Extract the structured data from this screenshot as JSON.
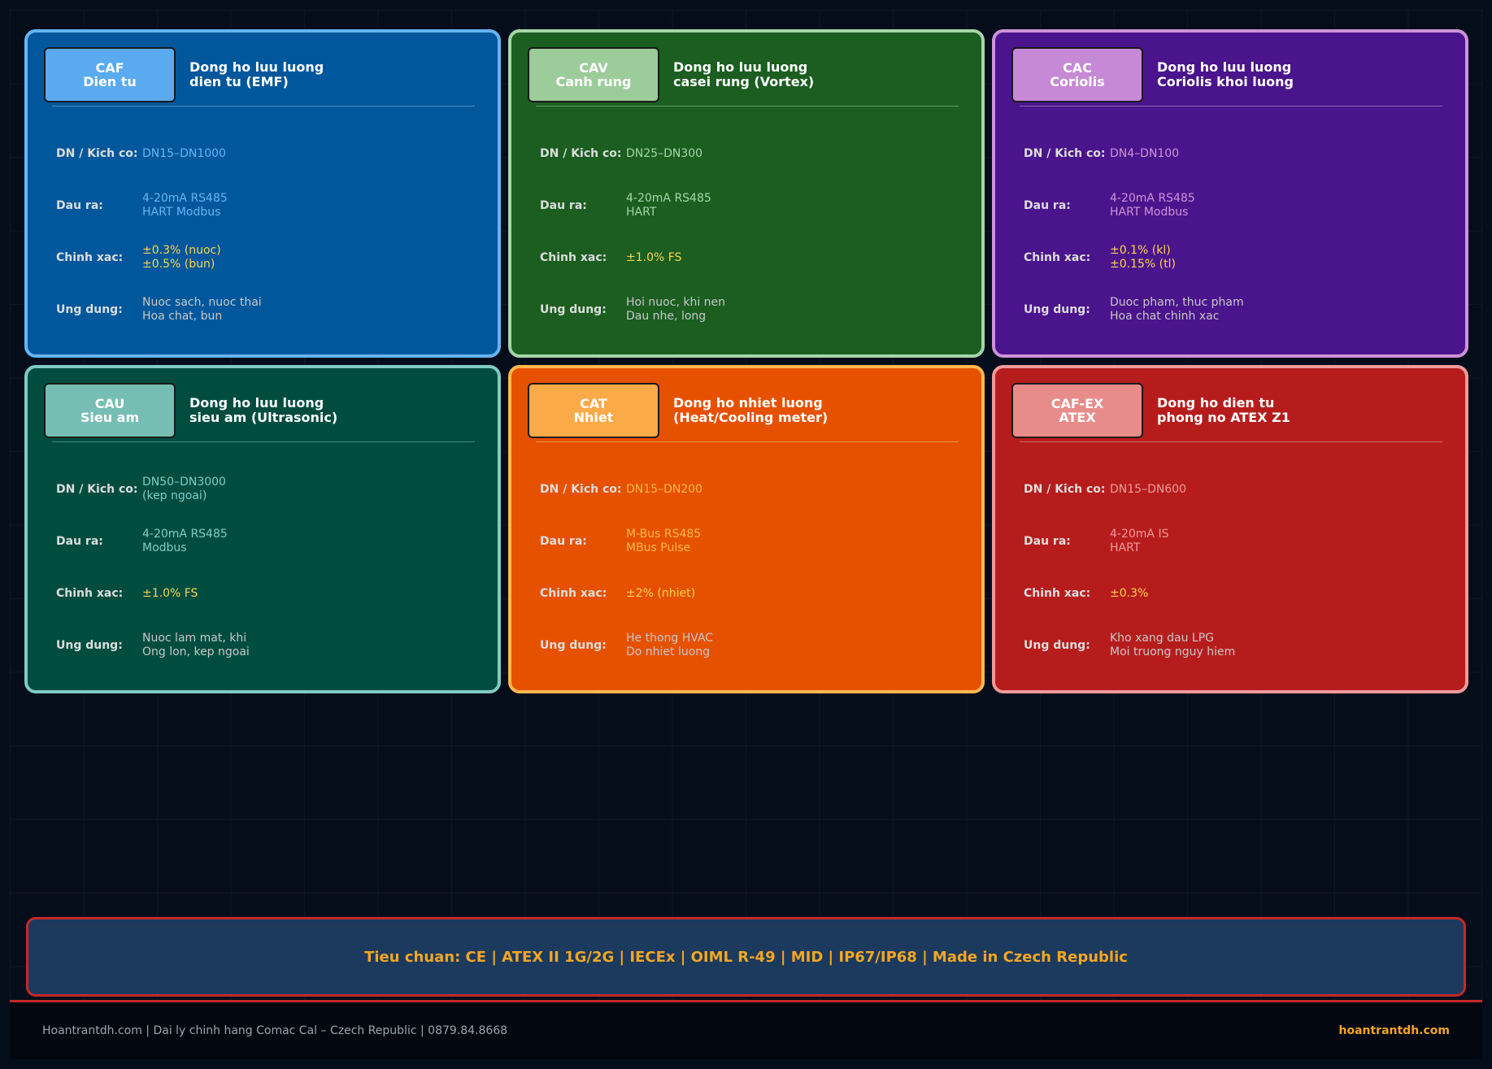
{
  "cards": [
    {
      "code": "CAF",
      "subtitle": "Dien tu",
      "title_line1": "Dong ho luu luong",
      "title_line2": "dien tu (EMF)",
      "colors": {
        "bg": "#01579b",
        "border": "#64b5f6",
        "box": "#5aaaef",
        "value": "#64b5f6",
        "divider": "#4a90c8"
      },
      "rows": [
        {
          "label": "DN / Kich co:",
          "lines": [
            "DN15–DN1000"
          ],
          "kind": "value"
        },
        {
          "label": "Dau ra:",
          "lines": [
            "4-20mA RS485",
            "HART Modbus"
          ],
          "kind": "value"
        },
        {
          "label": "Chinh xac:",
          "lines": [
            "±0.3% (nuoc)",
            "±0.5% (bun)"
          ],
          "kind": "accuracy"
        },
        {
          "label": "Ung dung:",
          "lines": [
            "Nuoc sach, nuoc thai",
            "Hoa chat, bun"
          ],
          "kind": "app"
        }
      ]
    },
    {
      "code": "CAV",
      "subtitle": "Canh rung",
      "title_line1": "Dong ho luu luong",
      "title_line2": "casei rung (Vortex)",
      "colors": {
        "bg": "#1b5e20",
        "border": "#a5d6a7",
        "box": "#9ccc9a",
        "value": "#a5d6a7",
        "divider": "#5f9a62"
      },
      "rows": [
        {
          "label": "DN / Kich co:",
          "lines": [
            "DN25–DN300"
          ],
          "kind": "value"
        },
        {
          "label": "Dau ra:",
          "lines": [
            "4-20mA RS485",
            "HART"
          ],
          "kind": "value"
        },
        {
          "label": "Chinh xac:",
          "lines": [
            "±1.0% FS"
          ],
          "kind": "accuracy"
        },
        {
          "label": "Ung dung:",
          "lines": [
            "Hoi nuoc, khi nen",
            "Dau nhe, long"
          ],
          "kind": "app"
        }
      ]
    },
    {
      "code": "CAC",
      "subtitle": "Coriolis",
      "title_line1": "Dong ho luu luong",
      "title_line2": "Coriolis khoi luong",
      "colors": {
        "bg": "#4a148c",
        "border": "#ce93d8",
        "box": "#c689d6",
        "value": "#ce93d8",
        "divider": "#8f63b0"
      },
      "rows": [
        {
          "label": "DN / Kich co:",
          "lines": [
            "DN4–DN100"
          ],
          "kind": "value"
        },
        {
          "label": "Dau ra:",
          "lines": [
            "4-20mA RS485",
            "HART Modbus"
          ],
          "kind": "value"
        },
        {
          "label": "Chinh xac:",
          "lines": [
            "±0.1% (kl)",
            "±0.15% (tl)"
          ],
          "kind": "accuracy"
        },
        {
          "label": "Ung dung:",
          "lines": [
            "Duoc pham, thuc pham",
            "Hoa chat chinh xac"
          ],
          "kind": "app"
        }
      ]
    },
    {
      "code": "CAU",
      "subtitle": "Sieu am",
      "title_line1": "Dong ho luu luong",
      "title_line2": "sieu am (Ultrasonic)",
      "colors": {
        "bg": "#004d40",
        "border": "#80cbc4",
        "box": "#76beb4",
        "value": "#80cbc4",
        "divider": "#3e8c82"
      },
      "rows": [
        {
          "label": "DN / Kich co:",
          "lines": [
            "DN50–DN3000",
            "(kep ngoai)"
          ],
          "kind": "value"
        },
        {
          "label": "Dau ra:",
          "lines": [
            "4-20mA RS485",
            "Modbus"
          ],
          "kind": "value"
        },
        {
          "label": "Chinh xac:",
          "lines": [
            "±1.0% FS"
          ],
          "kind": "accuracy"
        },
        {
          "label": "Ung dung:",
          "lines": [
            "Nuoc lam mat, khi",
            "Ong lon, kep ngoai"
          ],
          "kind": "app"
        }
      ]
    },
    {
      "code": "CAT",
      "subtitle": "Nhiet",
      "title_line1": "Dong ho nhiet luong",
      "title_line2": "(Heat/Cooling meter)",
      "colors": {
        "bg": "#e65100",
        "border": "#ffb74d",
        "box": "#fbaa48",
        "value": "#ffb74d",
        "divider": "#f0934a"
      },
      "rows": [
        {
          "label": "DN / Kich co:",
          "lines": [
            "DN15–DN200"
          ],
          "kind": "value"
        },
        {
          "label": "Dau ra:",
          "lines": [
            "M-Bus RS485",
            "MBus Pulse"
          ],
          "kind": "value"
        },
        {
          "label": "Chinh xac:",
          "lines": [
            "±2% (nhiet)"
          ],
          "kind": "accuracy"
        },
        {
          "label": "Ung dung:",
          "lines": [
            "He thong HVAC",
            "Do nhiet luong"
          ],
          "kind": "app"
        }
      ]
    },
    {
      "code": "CAF-EX",
      "subtitle": "ATEX",
      "title_line1": "Dong ho dien tu",
      "title_line2": "phong no ATEX Z1",
      "colors": {
        "bg": "#b71c1c",
        "border": "#ef9a9a",
        "box": "#e88c8a",
        "value": "#ef9a9a",
        "divider": "#d06a6a"
      },
      "rows": [
        {
          "label": "DN / Kich co:",
          "lines": [
            "DN15–DN600"
          ],
          "kind": "value"
        },
        {
          "label": "Dau ra:",
          "lines": [
            "4-20mA IS",
            "HART"
          ],
          "kind": "value"
        },
        {
          "label": "Chinh xac:",
          "lines": [
            "±0.3%"
          ],
          "kind": "accuracy"
        },
        {
          "label": "Ung dung:",
          "lines": [
            "Kho xang dau LPG",
            "Moi truong nguy hiem"
          ],
          "kind": "app"
        }
      ]
    }
  ],
  "styles": {
    "accuracy_color": "#ffd54f",
    "app_color": "#c8c8c8"
  },
  "banner": {
    "text": "Tieu chuan: CE | ATEX II 1G/2G | IECEx | OIML R-49 | MID | IP67/IP68 | Made in Czech Republic"
  },
  "footer": {
    "left": "Hoantrantdh.com  |  Dai ly chinh hang Comac Cal – Czech Republic  |  0879.84.8668",
    "right": "hoantrantdh.com"
  }
}
